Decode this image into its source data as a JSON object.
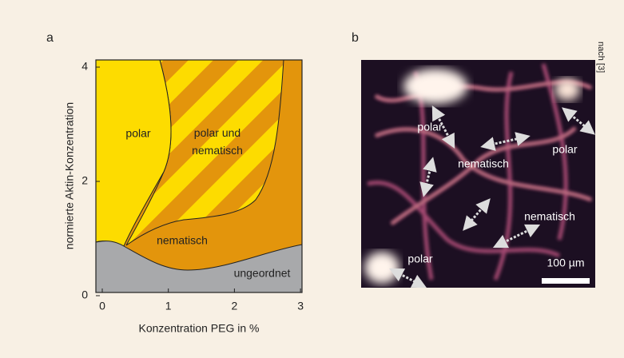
{
  "source_note": "nach [3]",
  "panel_a": {
    "label": "a",
    "x_axis_label": "Konzentration PEG in %",
    "y_axis_label": "normierte Aktin-Konzentration",
    "xticks": [
      0,
      1,
      2,
      3
    ],
    "yticks": [
      0,
      2,
      4
    ],
    "regions": [
      "polar",
      "polar und nematisch",
      "nematisch",
      "ungeordnet"
    ]
  },
  "panel_b": {
    "label": "b",
    "annotations": [
      "polar",
      "nematisch",
      "polar",
      "nematisch",
      "polar"
    ],
    "scale_bar": "100 µm"
  }
}
